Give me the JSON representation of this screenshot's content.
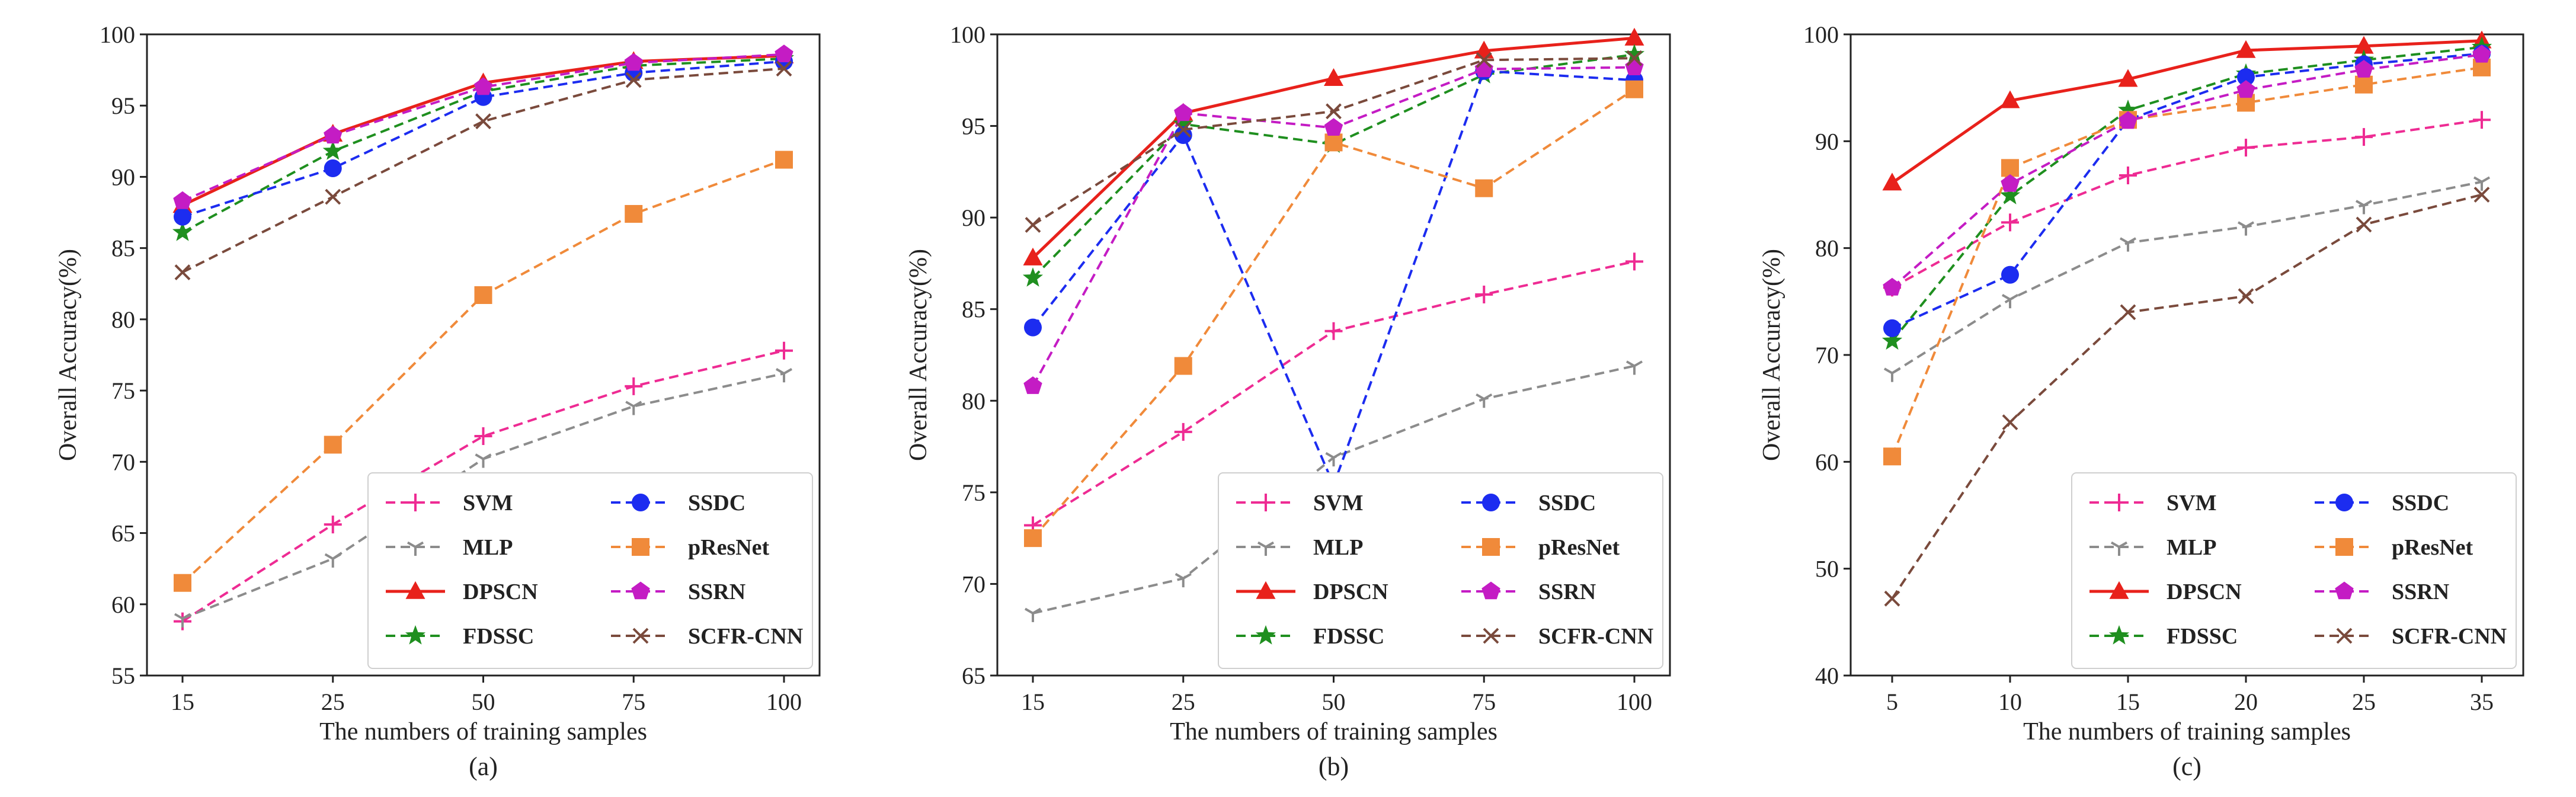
{
  "colors": {
    "SVM": "#ee2b93",
    "MLP": "#8c8c8c",
    "DPSCN": "#e8211b",
    "FDSSC": "#1f8f1f",
    "SSDC": "#1c2cf0",
    "pResNet": "#f08a3a",
    "SSRN": "#c41cc4",
    "SCFR-CNN": "#7a4a3c"
  },
  "chart_data": [
    {
      "type": "line",
      "panel_label": "(a)",
      "xlabel": "The numbers of training samples",
      "ylabel": "Overall Accuracy(%)",
      "categories": [
        "15",
        "25",
        "50",
        "75",
        "100"
      ],
      "ylim": [
        55,
        100
      ],
      "yticks": [
        55,
        60,
        65,
        70,
        75,
        80,
        85,
        90,
        95,
        100
      ],
      "legend_position": "lower-right",
      "series": [
        {
          "name": "SVM",
          "style": "dashed",
          "marker": "plus",
          "values": [
            58.8,
            65.6,
            71.8,
            75.3,
            77.8
          ]
        },
        {
          "name": "MLP",
          "style": "dashed",
          "marker": "tri_down",
          "values": [
            59.0,
            63.2,
            70.2,
            73.9,
            76.2
          ]
        },
        {
          "name": "DPSCN",
          "style": "solid",
          "marker": "triangle",
          "values": [
            88.0,
            93.0,
            96.6,
            98.1,
            98.5
          ]
        },
        {
          "name": "FDSSC",
          "style": "dashed",
          "marker": "star",
          "values": [
            86.1,
            91.8,
            96.0,
            97.8,
            98.3
          ]
        },
        {
          "name": "SSDC",
          "style": "dashed",
          "marker": "circle",
          "values": [
            87.2,
            90.6,
            95.6,
            97.3,
            98.1
          ]
        },
        {
          "name": "pResNet",
          "style": "dashed",
          "marker": "square",
          "values": [
            61.5,
            71.2,
            81.7,
            87.4,
            91.2
          ]
        },
        {
          "name": "SSRN",
          "style": "dashed",
          "marker": "pentagon",
          "values": [
            88.3,
            92.9,
            96.3,
            98.0,
            98.6
          ]
        },
        {
          "name": "SCFR-CNN",
          "style": "dashed",
          "marker": "x",
          "values": [
            83.3,
            88.6,
            93.9,
            96.8,
            97.6
          ]
        }
      ]
    },
    {
      "type": "line",
      "panel_label": "(b)",
      "xlabel": "The numbers of training samples",
      "ylabel": "Overall Accuracy(%)",
      "categories": [
        "15",
        "25",
        "50",
        "75",
        "100"
      ],
      "ylim": [
        65,
        100
      ],
      "yticks": [
        65,
        70,
        75,
        80,
        85,
        90,
        95,
        100
      ],
      "legend_position": "lower-right",
      "series": [
        {
          "name": "SVM",
          "style": "dashed",
          "marker": "plus",
          "values": [
            73.2,
            78.3,
            83.8,
            85.8,
            87.6
          ]
        },
        {
          "name": "MLP",
          "style": "dashed",
          "marker": "tri_down",
          "values": [
            68.4,
            70.3,
            76.9,
            80.1,
            81.9
          ]
        },
        {
          "name": "DPSCN",
          "style": "solid",
          "marker": "triangle",
          "values": [
            87.8,
            95.7,
            97.6,
            99.1,
            99.8
          ]
        },
        {
          "name": "FDSSC",
          "style": "dashed",
          "marker": "star",
          "values": [
            86.7,
            95.1,
            94.0,
            97.8,
            98.9
          ]
        },
        {
          "name": "SSDC",
          "style": "dashed",
          "marker": "circle",
          "values": [
            84.0,
            94.5,
            75.4,
            98.0,
            97.5
          ]
        },
        {
          "name": "pResNet",
          "style": "dashed",
          "marker": "square",
          "values": [
            72.5,
            81.9,
            94.1,
            91.6,
            97.0
          ]
        },
        {
          "name": "SSRN",
          "style": "dashed",
          "marker": "pentagon",
          "values": [
            80.8,
            95.7,
            94.9,
            98.1,
            98.2
          ]
        },
        {
          "name": "SCFR-CNN",
          "style": "dashed",
          "marker": "x",
          "values": [
            89.6,
            94.8,
            95.8,
            98.6,
            98.7
          ]
        }
      ]
    },
    {
      "type": "line",
      "panel_label": "(c)",
      "xlabel": "The numbers of training samples",
      "ylabel": "Overall Accuracy(%)",
      "categories": [
        "5",
        "10",
        "15",
        "20",
        "25",
        "35"
      ],
      "ylim": [
        40,
        100
      ],
      "yticks": [
        40,
        50,
        60,
        70,
        80,
        90,
        100
      ],
      "legend_position": "lower-right",
      "series": [
        {
          "name": "SVM",
          "style": "dashed",
          "marker": "plus",
          "values": [
            76.3,
            82.4,
            86.8,
            89.4,
            90.4,
            92.0
          ]
        },
        {
          "name": "MLP",
          "style": "dashed",
          "marker": "tri_down",
          "values": [
            68.3,
            75.2,
            80.5,
            82.0,
            84.0,
            86.2
          ]
        },
        {
          "name": "DPSCN",
          "style": "solid",
          "marker": "triangle",
          "values": [
            86.1,
            93.8,
            95.8,
            98.5,
            98.9,
            99.4
          ]
        },
        {
          "name": "FDSSC",
          "style": "dashed",
          "marker": "star",
          "values": [
            71.3,
            84.9,
            92.9,
            96.3,
            97.6,
            98.8
          ]
        },
        {
          "name": "SSDC",
          "style": "dashed",
          "marker": "circle",
          "values": [
            72.5,
            77.5,
            92.0,
            96.0,
            97.2,
            98.2
          ]
        },
        {
          "name": "pResNet",
          "style": "dashed",
          "marker": "square",
          "values": [
            60.5,
            87.5,
            92.0,
            93.6,
            95.3,
            96.9
          ]
        },
        {
          "name": "SSRN",
          "style": "dashed",
          "marker": "pentagon",
          "values": [
            76.3,
            86.0,
            91.9,
            94.8,
            96.7,
            98.1
          ]
        },
        {
          "name": "SCFR-CNN",
          "style": "dashed",
          "marker": "x",
          "values": [
            47.2,
            63.7,
            74.0,
            75.5,
            82.2,
            85.0
          ]
        }
      ]
    }
  ]
}
